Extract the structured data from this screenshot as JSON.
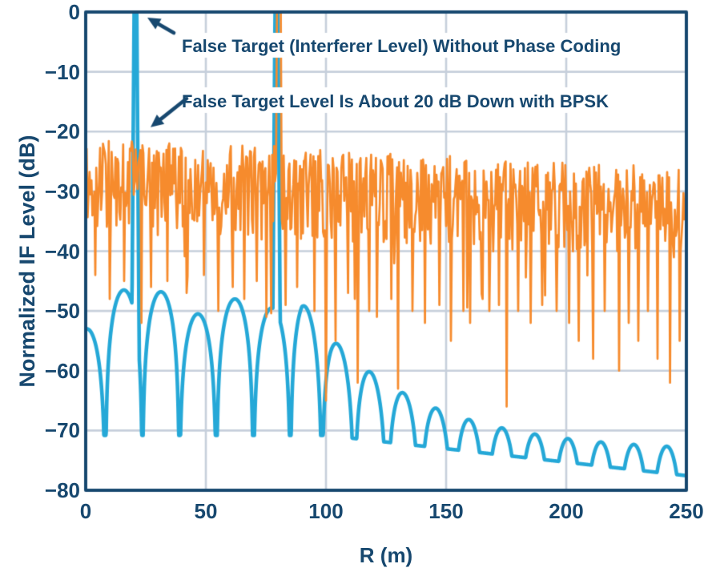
{
  "chart_data": {
    "type": "line",
    "title": "",
    "xlabel": "R (m)",
    "ylabel": "Normalized IF Level (dB)",
    "xlim": [
      0,
      250
    ],
    "ylim": [
      -80,
      0
    ],
    "x_ticks": [
      0,
      50,
      100,
      150,
      200,
      250
    ],
    "x_tick_labels": [
      "0",
      "50",
      "100",
      "150",
      "200",
      "250"
    ],
    "y_ticks": [
      0,
      -10,
      -20,
      -30,
      -40,
      -50,
      -60,
      -70,
      -80
    ],
    "y_tick_labels": [
      "0",
      "−10",
      "−20",
      "−30",
      "−40",
      "−50",
      "−60",
      "−70",
      "−80"
    ],
    "grid": true,
    "legend_position": "none",
    "colors": {
      "axis": "#17486F",
      "grid": "#C6CFDB",
      "text": "#17486F",
      "series_without_coding": "#25A8D7",
      "series_with_bpsk": "#F68B2D",
      "background": "#FFFFFF"
    },
    "series": [
      {
        "id": "without-phase-coding",
        "description": "Interferer false target without phase coding: 0 dB spike at 20 m plus periodic sinc-like sidelobe lobes decaying into a small ripple at far range",
        "color_key": "series_without_coding",
        "false_target": {
          "x_m": 20.7,
          "peak_db": 0,
          "half_width_m": 0.55
        },
        "real_target": {
          "x_m": 79.4,
          "peak_db": 0,
          "half_width_m": 0.6
        },
        "start_level_db": -53,
        "lobe_nulls_m": [
          8.2,
          23.6,
          39.0,
          54.4,
          69.8,
          85.2,
          98.3,
          111.8,
          125.4
        ],
        "lobe_peak_levels_db": [
          -53,
          -46.5,
          -46.8,
          -50.5,
          -48.0,
          -49.5
        ],
        "null_floor_db": -70.8,
        "far_envelope_decay": {
          "start_m": 90,
          "asymptote_db": -73.5,
          "amplitude_db": 25,
          "tau_m": 45
        },
        "far_null_floor": {
          "start_m": 100,
          "slope_db_per_m": -0.045
        },
        "far_ripple_period_m": 13.7,
        "level_at_250_m_db": {
          "peak": -72.8,
          "trough": -77.4
        }
      },
      {
        "id": "with-bpsk-phase-coding",
        "description": "With BPSK phase coding the interferer energy is spread into a noise floor; real target spike at 80 m reaches 0 dB; false-target residual is about 20 dB down (~-20 dB) at 20 m",
        "color_key": "series_with_bpsk",
        "real_target": {
          "x_m": 80.6,
          "peak_db": 0,
          "flat_from_m": 79.6,
          "flat_to_m": 81.6
        },
        "noise_band_top_db": {
          "at_0_m": -20.5,
          "at_250_m": -25.0
        },
        "noise_band_mean_db": {
          "at_0_m": -27.5,
          "at_250_m": -33.5
        },
        "noise_band_dense_bottom_db": {
          "at_0_m": -37.5,
          "at_250_m": -43.5
        },
        "false_target_residual_db": -20.5,
        "deep_dips": [
          [
            4,
            -44
          ],
          [
            10,
            -48
          ],
          [
            16,
            -45
          ],
          [
            23,
            -52
          ],
          [
            27,
            -46
          ],
          [
            34,
            -45
          ],
          [
            42,
            -47
          ],
          [
            49,
            -44
          ],
          [
            55,
            -50
          ],
          [
            61,
            -46
          ],
          [
            66,
            -48
          ],
          [
            71,
            -45
          ],
          [
            75,
            -51
          ],
          [
            83,
            -49
          ],
          [
            88,
            -46
          ],
          [
            95,
            -50
          ],
          [
            100,
            -65
          ],
          [
            104,
            -55
          ],
          [
            109,
            -47
          ],
          [
            113,
            -62
          ],
          [
            118,
            -50
          ],
          [
            121,
            -51
          ],
          [
            127,
            -48
          ],
          [
            130,
            -63
          ],
          [
            136,
            -50
          ],
          [
            141,
            -52
          ],
          [
            147,
            -49
          ],
          [
            152,
            -55
          ],
          [
            157,
            -50
          ],
          [
            160,
            -52
          ],
          [
            165,
            -48
          ],
          [
            168,
            -50
          ],
          [
            172,
            -49
          ],
          [
            175,
            -66
          ],
          [
            180,
            -50
          ],
          [
            185,
            -52
          ],
          [
            190,
            -49
          ],
          [
            196,
            -50
          ],
          [
            201,
            -52
          ],
          [
            205,
            -55
          ],
          [
            211,
            -58
          ],
          [
            216,
            -50
          ],
          [
            222,
            -60
          ],
          [
            226,
            -52
          ],
          [
            230,
            -55
          ],
          [
            234,
            -50
          ],
          [
            238,
            -58
          ],
          [
            243,
            -62
          ],
          [
            247,
            -55
          ]
        ],
        "noise_seed": 20210914,
        "sample_step_m": 0.4
      }
    ],
    "annotations": [
      {
        "text": "False Target (Interferer Level) Without Phase Coding",
        "points_to": {
          "series": "without-phase-coding",
          "x_m": 21,
          "level_db": 0
        }
      },
      {
        "text": "False Target Level Is About 20 dB Down with BPSK",
        "points_to": {
          "series": "without-phase-coding",
          "x_m": 21,
          "level_db": -19
        }
      }
    ]
  }
}
